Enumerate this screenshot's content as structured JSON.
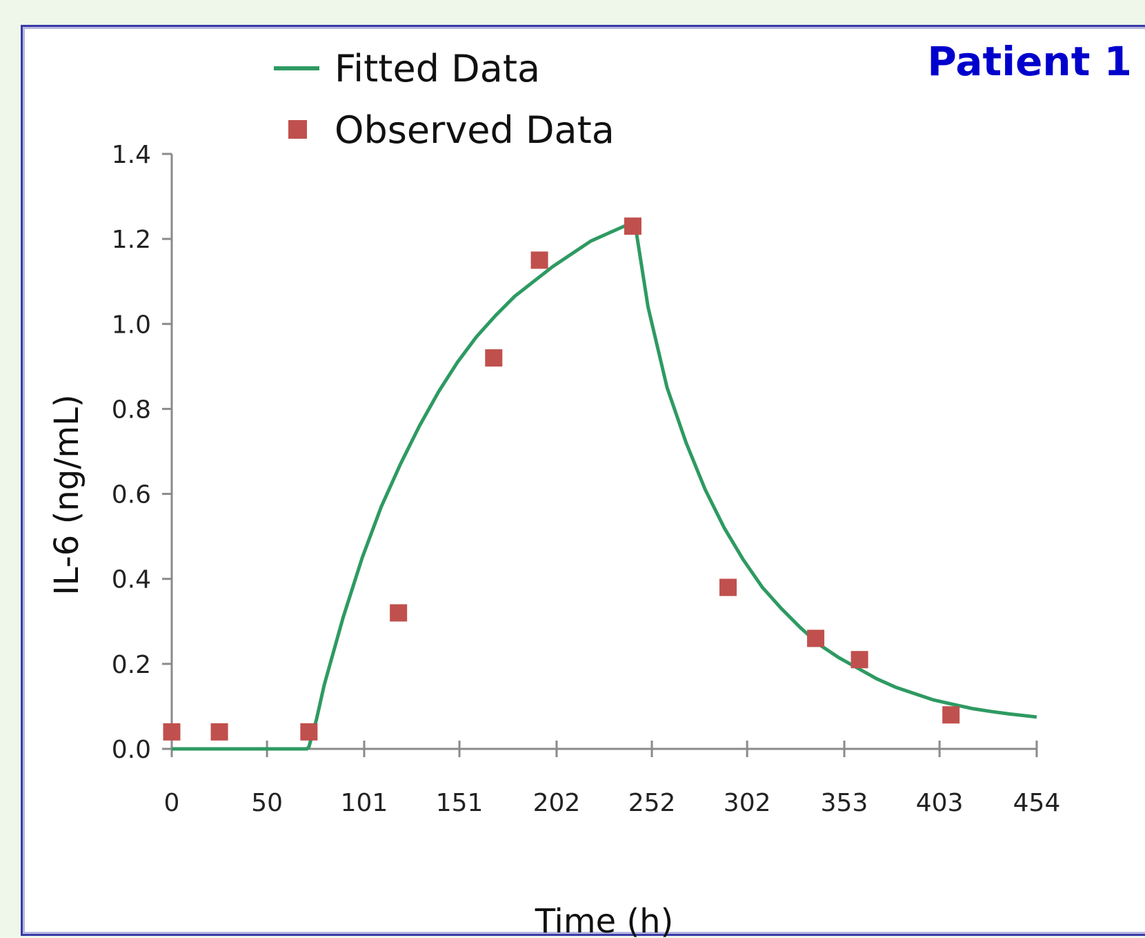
{
  "chart_data": {
    "type": "scatter",
    "title": "Patient 1",
    "xlabel": "Time (h)",
    "ylabel": "IL-6 (ng/mL)",
    "xlim": [
      0,
      454
    ],
    "ylim": [
      0,
      1.4
    ],
    "x_ticks": [
      0,
      50,
      101,
      151,
      202,
      252,
      302,
      353,
      403,
      454
    ],
    "y_ticks": [
      "0.0",
      "0.2",
      "0.4",
      "0.6",
      "0.8",
      "1.0",
      "1.2",
      "1.4"
    ],
    "grid": false,
    "legend_position": "top",
    "series": [
      {
        "name": "Fitted Data",
        "kind": "line",
        "color": "#2e9a62",
        "x": [
          0,
          71,
          72,
          76,
          80,
          90,
          100,
          110,
          120,
          130,
          140,
          150,
          160,
          170,
          180,
          190,
          200,
          210,
          220,
          230,
          240,
          243,
          250,
          260,
          270,
          280,
          290,
          300,
          310,
          320,
          330,
          340,
          350,
          360,
          370,
          380,
          390,
          400,
          410,
          420,
          430,
          440,
          454
        ],
        "y": [
          0,
          0,
          0.005,
          0.07,
          0.15,
          0.31,
          0.45,
          0.57,
          0.67,
          0.76,
          0.84,
          0.91,
          0.97,
          1.02,
          1.065,
          1.1,
          1.135,
          1.165,
          1.195,
          1.215,
          1.235,
          1.24,
          1.04,
          0.85,
          0.72,
          0.61,
          0.52,
          0.445,
          0.38,
          0.33,
          0.285,
          0.245,
          0.215,
          0.19,
          0.165,
          0.145,
          0.13,
          0.115,
          0.105,
          0.095,
          0.088,
          0.082,
          0.075
        ]
      },
      {
        "name": "Observed Data",
        "kind": "scatter",
        "color": "#c0504d",
        "x": [
          0,
          25,
          72,
          119,
          169,
          193,
          242,
          292,
          338,
          361,
          409
        ],
        "y": [
          0.04,
          0.04,
          0.04,
          0.32,
          0.92,
          1.15,
          1.23,
          0.38,
          0.26,
          0.21,
          0.08
        ]
      }
    ]
  }
}
